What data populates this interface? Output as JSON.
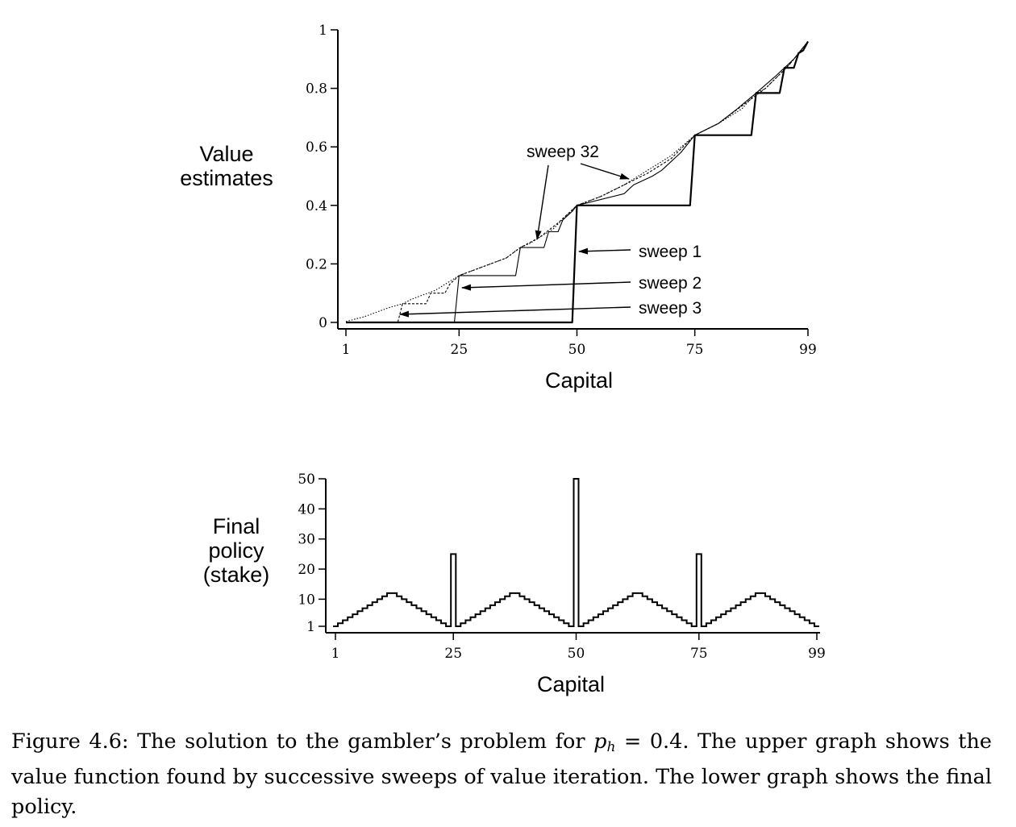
{
  "chart_data": [
    {
      "type": "line",
      "ylabel": "Value estimates",
      "xlabel": "Capital",
      "x_ticks": [
        "1",
        "25",
        "50",
        "75",
        "99"
      ],
      "y_ticks": [
        "0",
        "0.2",
        "0.4",
        "0.6",
        "0.8",
        "1"
      ],
      "xlim": [
        1,
        99
      ],
      "ylim": [
        0,
        1
      ],
      "annotations": [
        "sweep 32",
        "sweep 1",
        "sweep 2",
        "sweep 3"
      ],
      "series": [
        {
          "name": "sweep 1",
          "x": [
            1,
            49,
            50,
            74,
            75,
            87,
            88,
            93,
            94,
            96,
            97,
            98,
            99
          ],
          "y": [
            0,
            0,
            0.4,
            0.4,
            0.64,
            0.64,
            0.784,
            0.784,
            0.87,
            0.87,
            0.92,
            0.93,
            0.96
          ]
        },
        {
          "name": "sweep 2",
          "x": [
            1,
            24,
            25,
            37,
            38,
            43,
            44,
            46,
            47,
            49,
            50,
            60,
            62,
            66,
            68,
            70,
            72,
            75,
            80,
            84,
            88,
            92,
            96,
            99
          ],
          "y": [
            0,
            0,
            0.16,
            0.16,
            0.256,
            0.256,
            0.31,
            0.31,
            0.35,
            0.38,
            0.4,
            0.44,
            0.47,
            0.5,
            0.52,
            0.55,
            0.58,
            0.64,
            0.68,
            0.73,
            0.784,
            0.84,
            0.9,
            0.96
          ]
        },
        {
          "name": "sweep 3",
          "x": [
            1,
            12,
            13,
            18,
            19,
            22,
            23,
            25,
            30,
            35,
            38,
            42,
            46,
            50,
            55,
            60,
            65,
            70,
            75,
            80,
            85,
            90,
            95,
            99
          ],
          "y": [
            0,
            0,
            0.064,
            0.064,
            0.1,
            0.1,
            0.13,
            0.16,
            0.19,
            0.22,
            0.256,
            0.29,
            0.34,
            0.4,
            0.43,
            0.47,
            0.51,
            0.56,
            0.64,
            0.68,
            0.74,
            0.8,
            0.88,
            0.96
          ]
        },
        {
          "name": "sweep 32",
          "x": [
            1,
            5,
            10,
            13,
            15,
            20,
            25,
            30,
            35,
            38,
            40,
            45,
            50,
            55,
            60,
            63,
            65,
            70,
            75,
            80,
            85,
            88,
            90,
            95,
            99
          ],
          "y": [
            0.003,
            0.02,
            0.05,
            0.064,
            0.08,
            0.11,
            0.16,
            0.19,
            0.22,
            0.256,
            0.27,
            0.32,
            0.4,
            0.43,
            0.47,
            0.5,
            0.52,
            0.57,
            0.64,
            0.68,
            0.73,
            0.784,
            0.8,
            0.88,
            0.96
          ]
        }
      ]
    },
    {
      "type": "line",
      "ylabel": "Final policy (stake)",
      "xlabel": "Capital",
      "x_ticks": [
        "1",
        "25",
        "50",
        "75",
        "99"
      ],
      "y_ticks": [
        "1",
        "10",
        "20",
        "30",
        "40",
        "50"
      ],
      "xlim": [
        1,
        99
      ],
      "ylim": [
        1,
        50
      ],
      "series": [
        {
          "name": "",
          "x": [
            1,
            2,
            3,
            4,
            5,
            6,
            7,
            8,
            9,
            10,
            11,
            12,
            13,
            14,
            15,
            16,
            17,
            18,
            19,
            20,
            21,
            22,
            23,
            24,
            25,
            26,
            27,
            28,
            29,
            30,
            31,
            32,
            33,
            34,
            35,
            36,
            37,
            38,
            39,
            40,
            41,
            42,
            43,
            44,
            45,
            46,
            47,
            48,
            49,
            50,
            51,
            52,
            53,
            54,
            55,
            56,
            57,
            58,
            59,
            60,
            61,
            62,
            63,
            64,
            65,
            66,
            67,
            68,
            69,
            70,
            71,
            72,
            73,
            74,
            75,
            76,
            77,
            78,
            79,
            80,
            81,
            82,
            83,
            84,
            85,
            86,
            87,
            88,
            89,
            90,
            91,
            92,
            93,
            94,
            95,
            96,
            97,
            98,
            99
          ],
          "y": [
            1,
            2,
            3,
            4,
            5,
            6,
            7,
            8,
            9,
            10,
            11,
            12,
            12,
            11,
            10,
            9,
            8,
            7,
            6,
            5,
            4,
            3,
            2,
            1,
            25,
            1,
            2,
            3,
            4,
            5,
            6,
            7,
            8,
            9,
            10,
            11,
            12,
            12,
            11,
            10,
            9,
            8,
            7,
            6,
            5,
            4,
            3,
            2,
            1,
            50,
            1,
            2,
            3,
            4,
            5,
            6,
            7,
            8,
            9,
            10,
            11,
            12,
            12,
            11,
            10,
            9,
            8,
            7,
            6,
            5,
            4,
            3,
            2,
            1,
            25,
            1,
            2,
            3,
            4,
            5,
            6,
            7,
            8,
            9,
            10,
            11,
            12,
            12,
            11,
            10,
            9,
            8,
            7,
            6,
            5,
            4,
            3,
            2,
            1
          ]
        }
      ]
    }
  ],
  "caption": {
    "lead": "Figure 4.6:  The solution to the gambler’s problem for ",
    "var": "p",
    "sub": "h",
    "rest": " = 0.4.  The upper graph shows the value function found by successive sweeps of value iteration. The lower graph shows the final policy."
  }
}
